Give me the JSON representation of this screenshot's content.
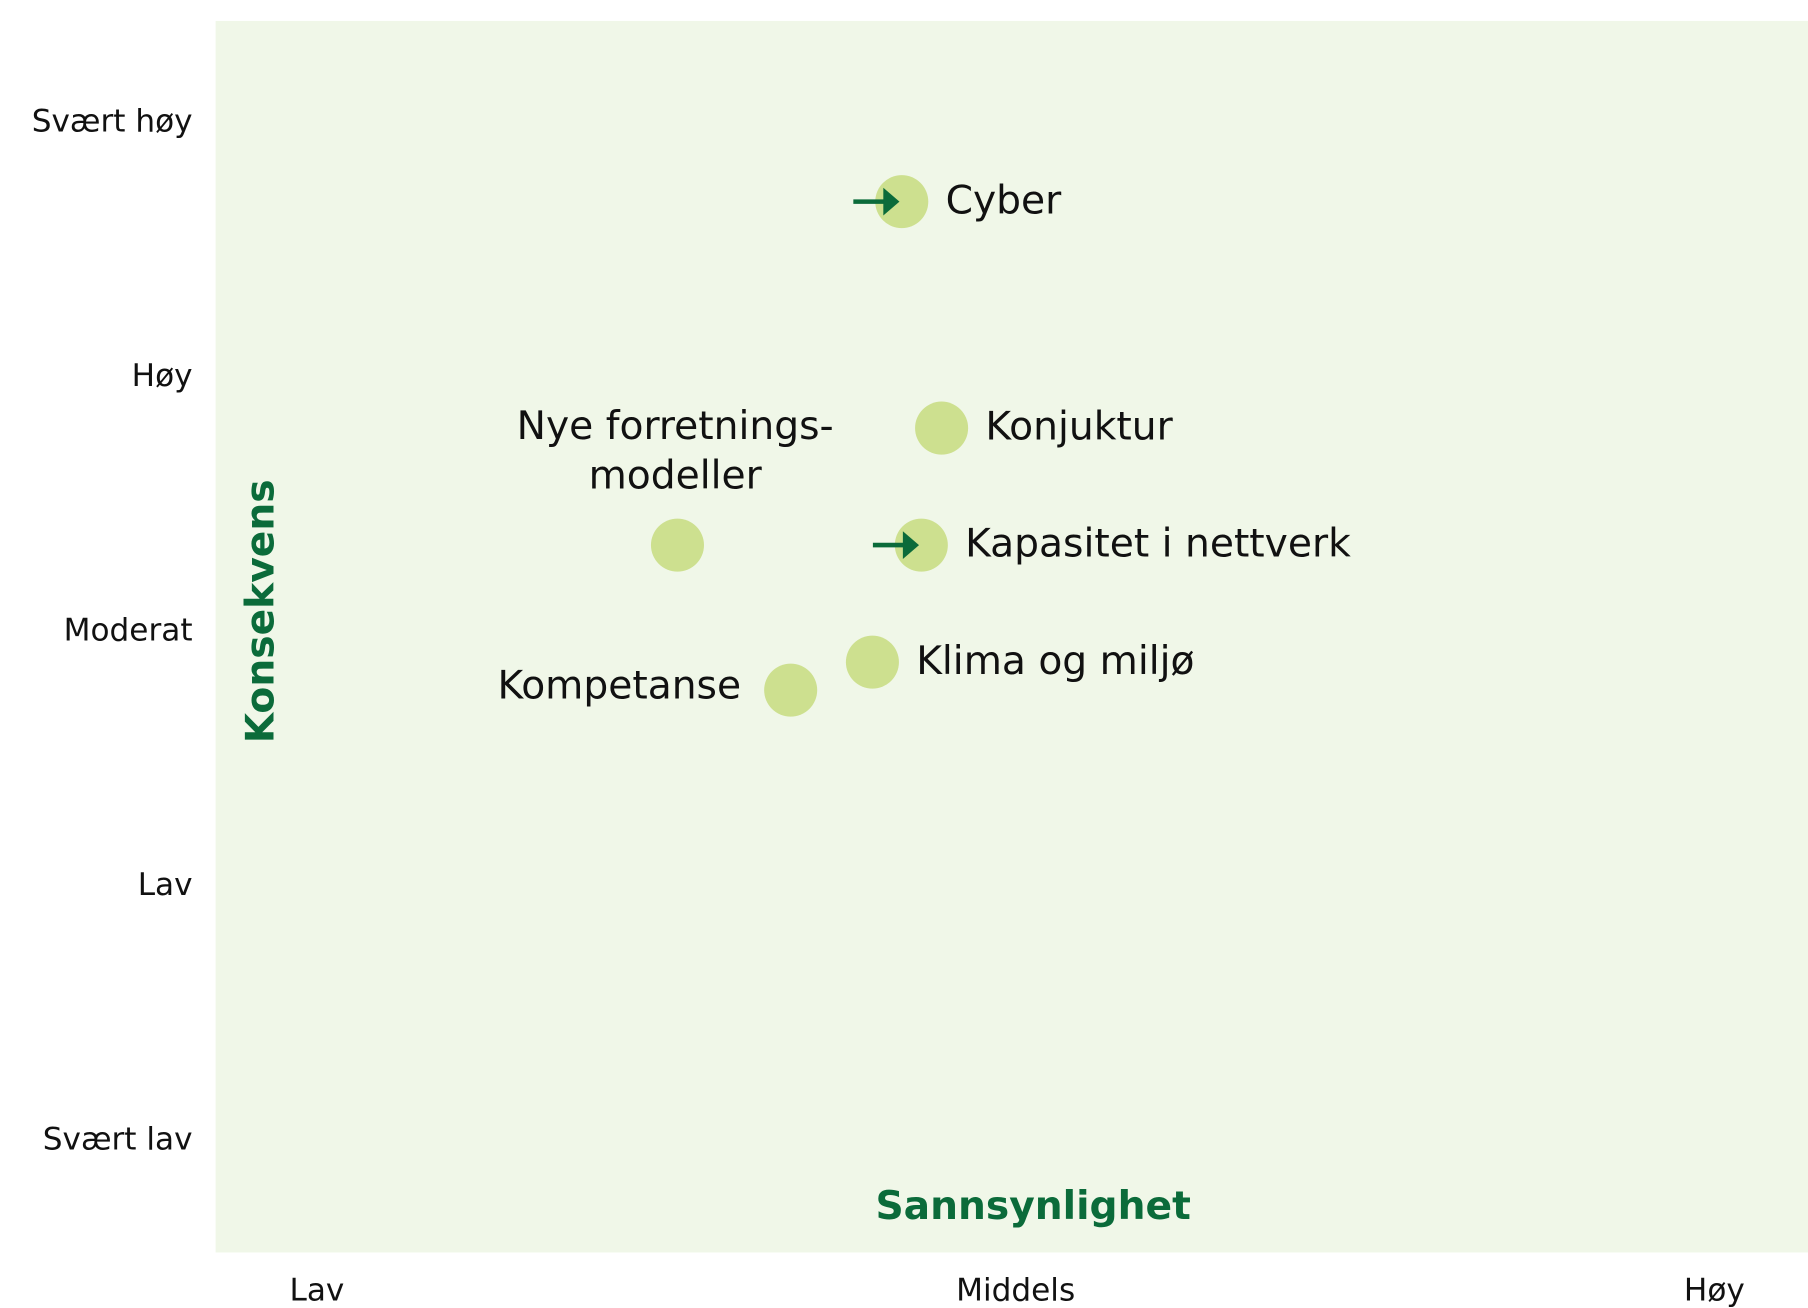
{
  "chart_data": {
    "type": "scatter",
    "xlabel": "Sannsynlighet",
    "ylabel": "Konsekvens",
    "xlim": [
      0.855,
      3.134
    ],
    "ylim": [
      0.56,
      5.4
    ],
    "xticks": [
      {
        "value": 1,
        "label": "Lav"
      },
      {
        "value": 2,
        "label": "Middels"
      },
      {
        "value": 3,
        "label": "Høy"
      }
    ],
    "yticks": [
      {
        "value": 1,
        "label": "Svært lav"
      },
      {
        "value": 2,
        "label": "Lav"
      },
      {
        "value": 3,
        "label": "Moderat"
      },
      {
        "value": 4,
        "label": "Høy"
      },
      {
        "value": 5,
        "label": "Svært høy"
      }
    ],
    "background": "#f0f7e8",
    "color": "#cde08f",
    "arrow_color": "#0b6b3a",
    "title_color": "#0b6b3a",
    "points": [
      {
        "label": "Cyber",
        "x": 1.837,
        "y": 4.69,
        "arrow": true,
        "label_pos": "right"
      },
      {
        "label": "Konjuktur",
        "x": 1.894,
        "y": 3.8,
        "arrow": false,
        "label_pos": "right"
      },
      {
        "label": [
          "Nye forretnings-",
          "modeller"
        ],
        "x": 1.516,
        "y": 3.34,
        "arrow": false,
        "label_pos": "above"
      },
      {
        "label": "Kapasitet i nettverk",
        "x": 1.865,
        "y": 3.34,
        "arrow": true,
        "label_pos": "right"
      },
      {
        "label": "Klima og miljø",
        "x": 1.795,
        "y": 2.88,
        "arrow": false,
        "label_pos": "right"
      },
      {
        "label": "Kompetanse",
        "x": 1.678,
        "y": 2.77,
        "arrow": false,
        "label_pos": "left"
      }
    ]
  }
}
